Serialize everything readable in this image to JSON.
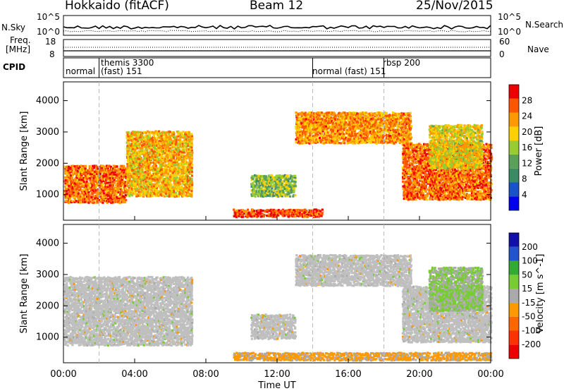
{
  "header": {
    "station": "Hokkaido (fitACF)",
    "beam": "Beam 12",
    "date": "25/Nov/2015"
  },
  "noise_panel": {
    "left_label": "N.Sky",
    "right_label": "N.Search",
    "right_style": "dotted",
    "left_ticks": [
      "10^5",
      "10^0"
    ],
    "right_ticks": [
      "10^5",
      "10^0"
    ]
  },
  "freq_panel": {
    "left_label_line1": "Freq.",
    "left_label_line2": "[MHz]",
    "left_ticks": [
      "18",
      "8"
    ],
    "right_label": "Nave",
    "right_style": "dotted",
    "right_ticks": [
      "60",
      "0"
    ]
  },
  "cpid_panel": {
    "label": "CPID",
    "segments": [
      {
        "mode": "normal",
        "start_hr": 0.0
      },
      {
        "mode": "themis 3300",
        "sub": "(fast) 151",
        "start_hr": 2.0
      },
      {
        "mode": "normal (fast) 151",
        "start_hr": 14.0
      },
      {
        "mode": "rbsp 200",
        "start_hr": 18.0
      }
    ]
  },
  "colors": {
    "power_scale": [
      "#0000ee",
      "#1a52c8",
      "#3a8a64",
      "#5aa05a",
      "#99cc33",
      "#ffd000",
      "#ff9900",
      "#ff5500",
      "#ee0000"
    ],
    "velocity_scale": [
      "#1111aa",
      "#2255cc",
      "#33aa33",
      "#77cc33",
      "#aaaaaa",
      "#ff9900",
      "#ff6600",
      "#ff3300",
      "#ee0000"
    ],
    "ground_scatter": "#bfbfbf"
  },
  "chart_data": [
    {
      "type": "heatmap",
      "panel": "power",
      "ylabel": "Slant Range [km]",
      "colorbar_label": "Power [dB]",
      "colorbar_ticks": [
        "28",
        "24",
        "20",
        "16",
        "12",
        "8",
        "4"
      ],
      "colorbar_range": [
        0,
        30
      ],
      "xlim_hr": [
        0,
        24
      ],
      "ylim": [
        180,
        4600
      ],
      "yticks": [
        "1000",
        "2000",
        "3000",
        "4000"
      ],
      "regions": [
        {
          "t0": 0.0,
          "t1": 3.5,
          "r0": 700,
          "r1": 1900,
          "level": 24
        },
        {
          "t0": 3.5,
          "t1": 7.2,
          "r0": 900,
          "r1": 3000,
          "level": 20
        },
        {
          "t0": 9.5,
          "t1": 14.5,
          "r0": 250,
          "r1": 500,
          "level": 26
        },
        {
          "t0": 10.5,
          "t1": 13.0,
          "r0": 900,
          "r1": 1600,
          "level": 14
        },
        {
          "t0": 13.0,
          "t1": 19.5,
          "r0": 2600,
          "r1": 3600,
          "level": 22
        },
        {
          "t0": 19.0,
          "t1": 24.0,
          "r0": 800,
          "r1": 2600,
          "level": 24
        },
        {
          "t0": 20.5,
          "t1": 23.5,
          "r0": 1800,
          "r1": 3200,
          "level": 18
        }
      ]
    },
    {
      "type": "heatmap",
      "panel": "velocity",
      "ylabel": "Slant Range [km]",
      "colorbar_label": "Velocity [m s^-1]",
      "colorbar_ticks": [
        "200",
        "100",
        "50",
        "15",
        "-15",
        "-50",
        "-100",
        "-200"
      ],
      "colorbar_range": [
        -250,
        250
      ],
      "xlim_hr": [
        0,
        24
      ],
      "ylim": [
        180,
        4600
      ],
      "yticks": [
        "1000",
        "2000",
        "3000",
        "4000"
      ],
      "regions": [
        {
          "t0": 0.0,
          "t1": 7.2,
          "r0": 700,
          "r1": 2900,
          "level": 0
        },
        {
          "t0": 9.5,
          "t1": 24.0,
          "r0": 220,
          "r1": 480,
          "level": -40
        },
        {
          "t0": 10.5,
          "t1": 13.0,
          "r0": 900,
          "r1": 1700,
          "level": 0
        },
        {
          "t0": 13.0,
          "t1": 19.5,
          "r0": 2600,
          "r1": 3600,
          "level": 0
        },
        {
          "t0": 19.0,
          "t1": 24.0,
          "r0": 800,
          "r1": 2600,
          "level": 0
        },
        {
          "t0": 20.5,
          "t1": 23.5,
          "r0": 1800,
          "r1": 3200,
          "level": 30
        }
      ]
    }
  ],
  "xaxis": {
    "label": "Time UT",
    "ticks": [
      "00:00",
      "04:00",
      "08:00",
      "12:00",
      "16:00",
      "20:00",
      "00:00"
    ],
    "dashed_marks_hr": [
      2.0,
      14.0,
      18.0
    ]
  }
}
